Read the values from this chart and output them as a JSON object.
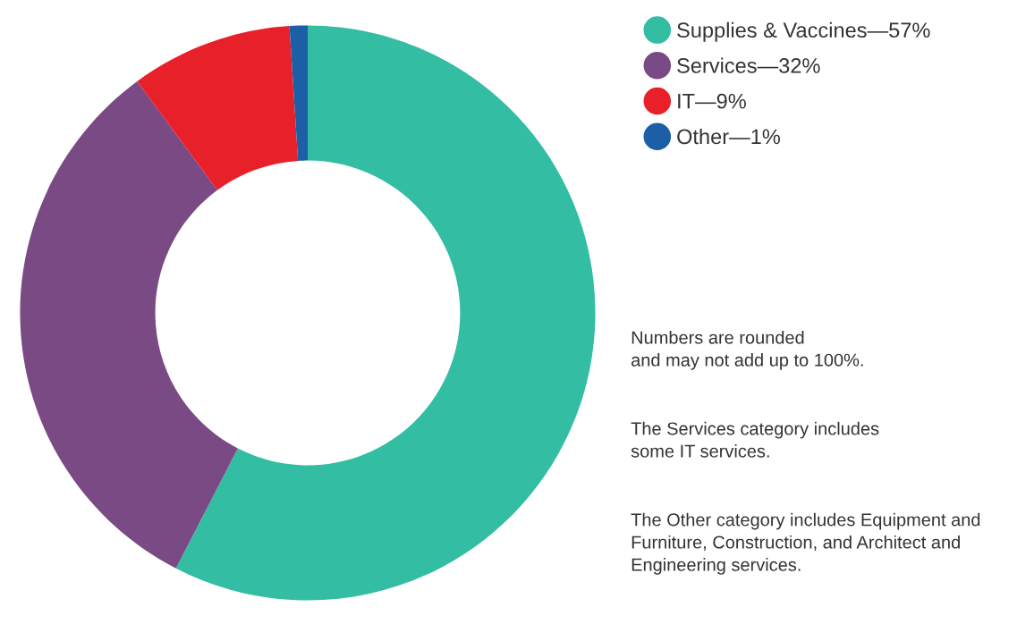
{
  "chart_data": {
    "type": "donut",
    "categories": [
      "Supplies & Vaccines—57%",
      "Services—32%",
      "IT—9%",
      "Other—1%"
    ],
    "values": [
      57,
      32,
      9,
      1
    ],
    "colors": [
      "#33bda3",
      "#7a4a85",
      "#e8202a",
      "#1d5fa6"
    ],
    "legend": "top right",
    "annotations": [
      "Numbers are rounded\nand may not add up to 100%.",
      "The Services category includes\nsome IT services.",
      "The Other category includes Equipment and\nFurniture, Construction, and Architect and\nEngineering services."
    ]
  }
}
